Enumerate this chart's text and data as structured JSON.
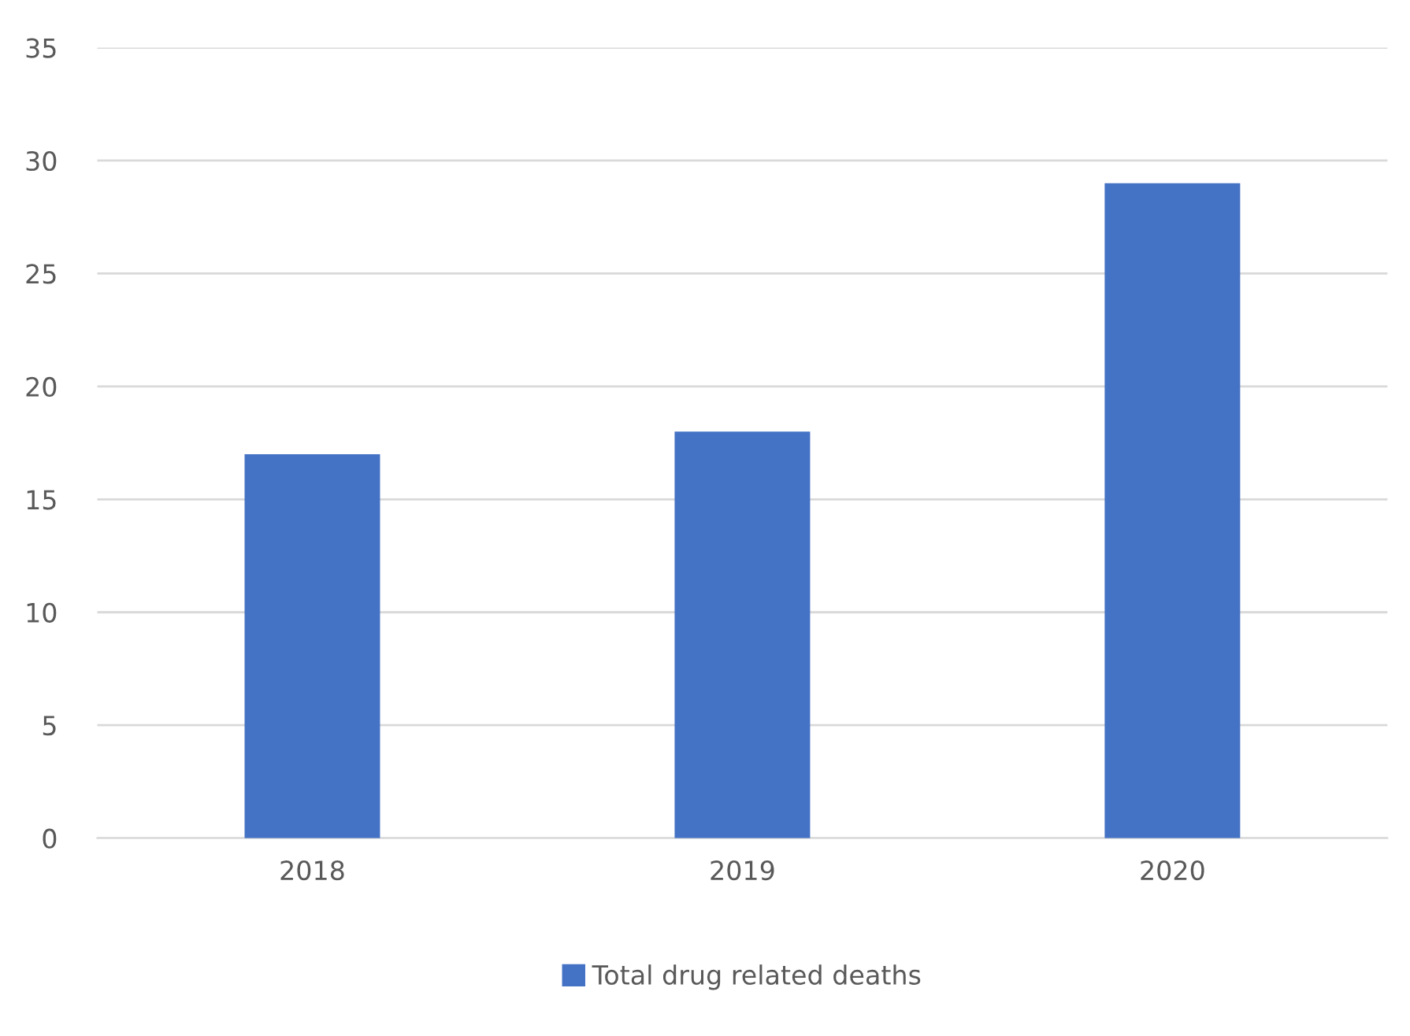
{
  "chart_data": {
    "type": "bar",
    "categories": [
      "2018",
      "2019",
      "2020"
    ],
    "series": [
      {
        "name": "Total drug related deaths",
        "color": "#4472c4",
        "values": [
          17,
          18,
          29
        ]
      }
    ],
    "ylim": [
      0,
      35
    ],
    "yticks": [
      0,
      5,
      10,
      15,
      20,
      25,
      30,
      35
    ],
    "grid": "y",
    "legend": "bottom"
  }
}
